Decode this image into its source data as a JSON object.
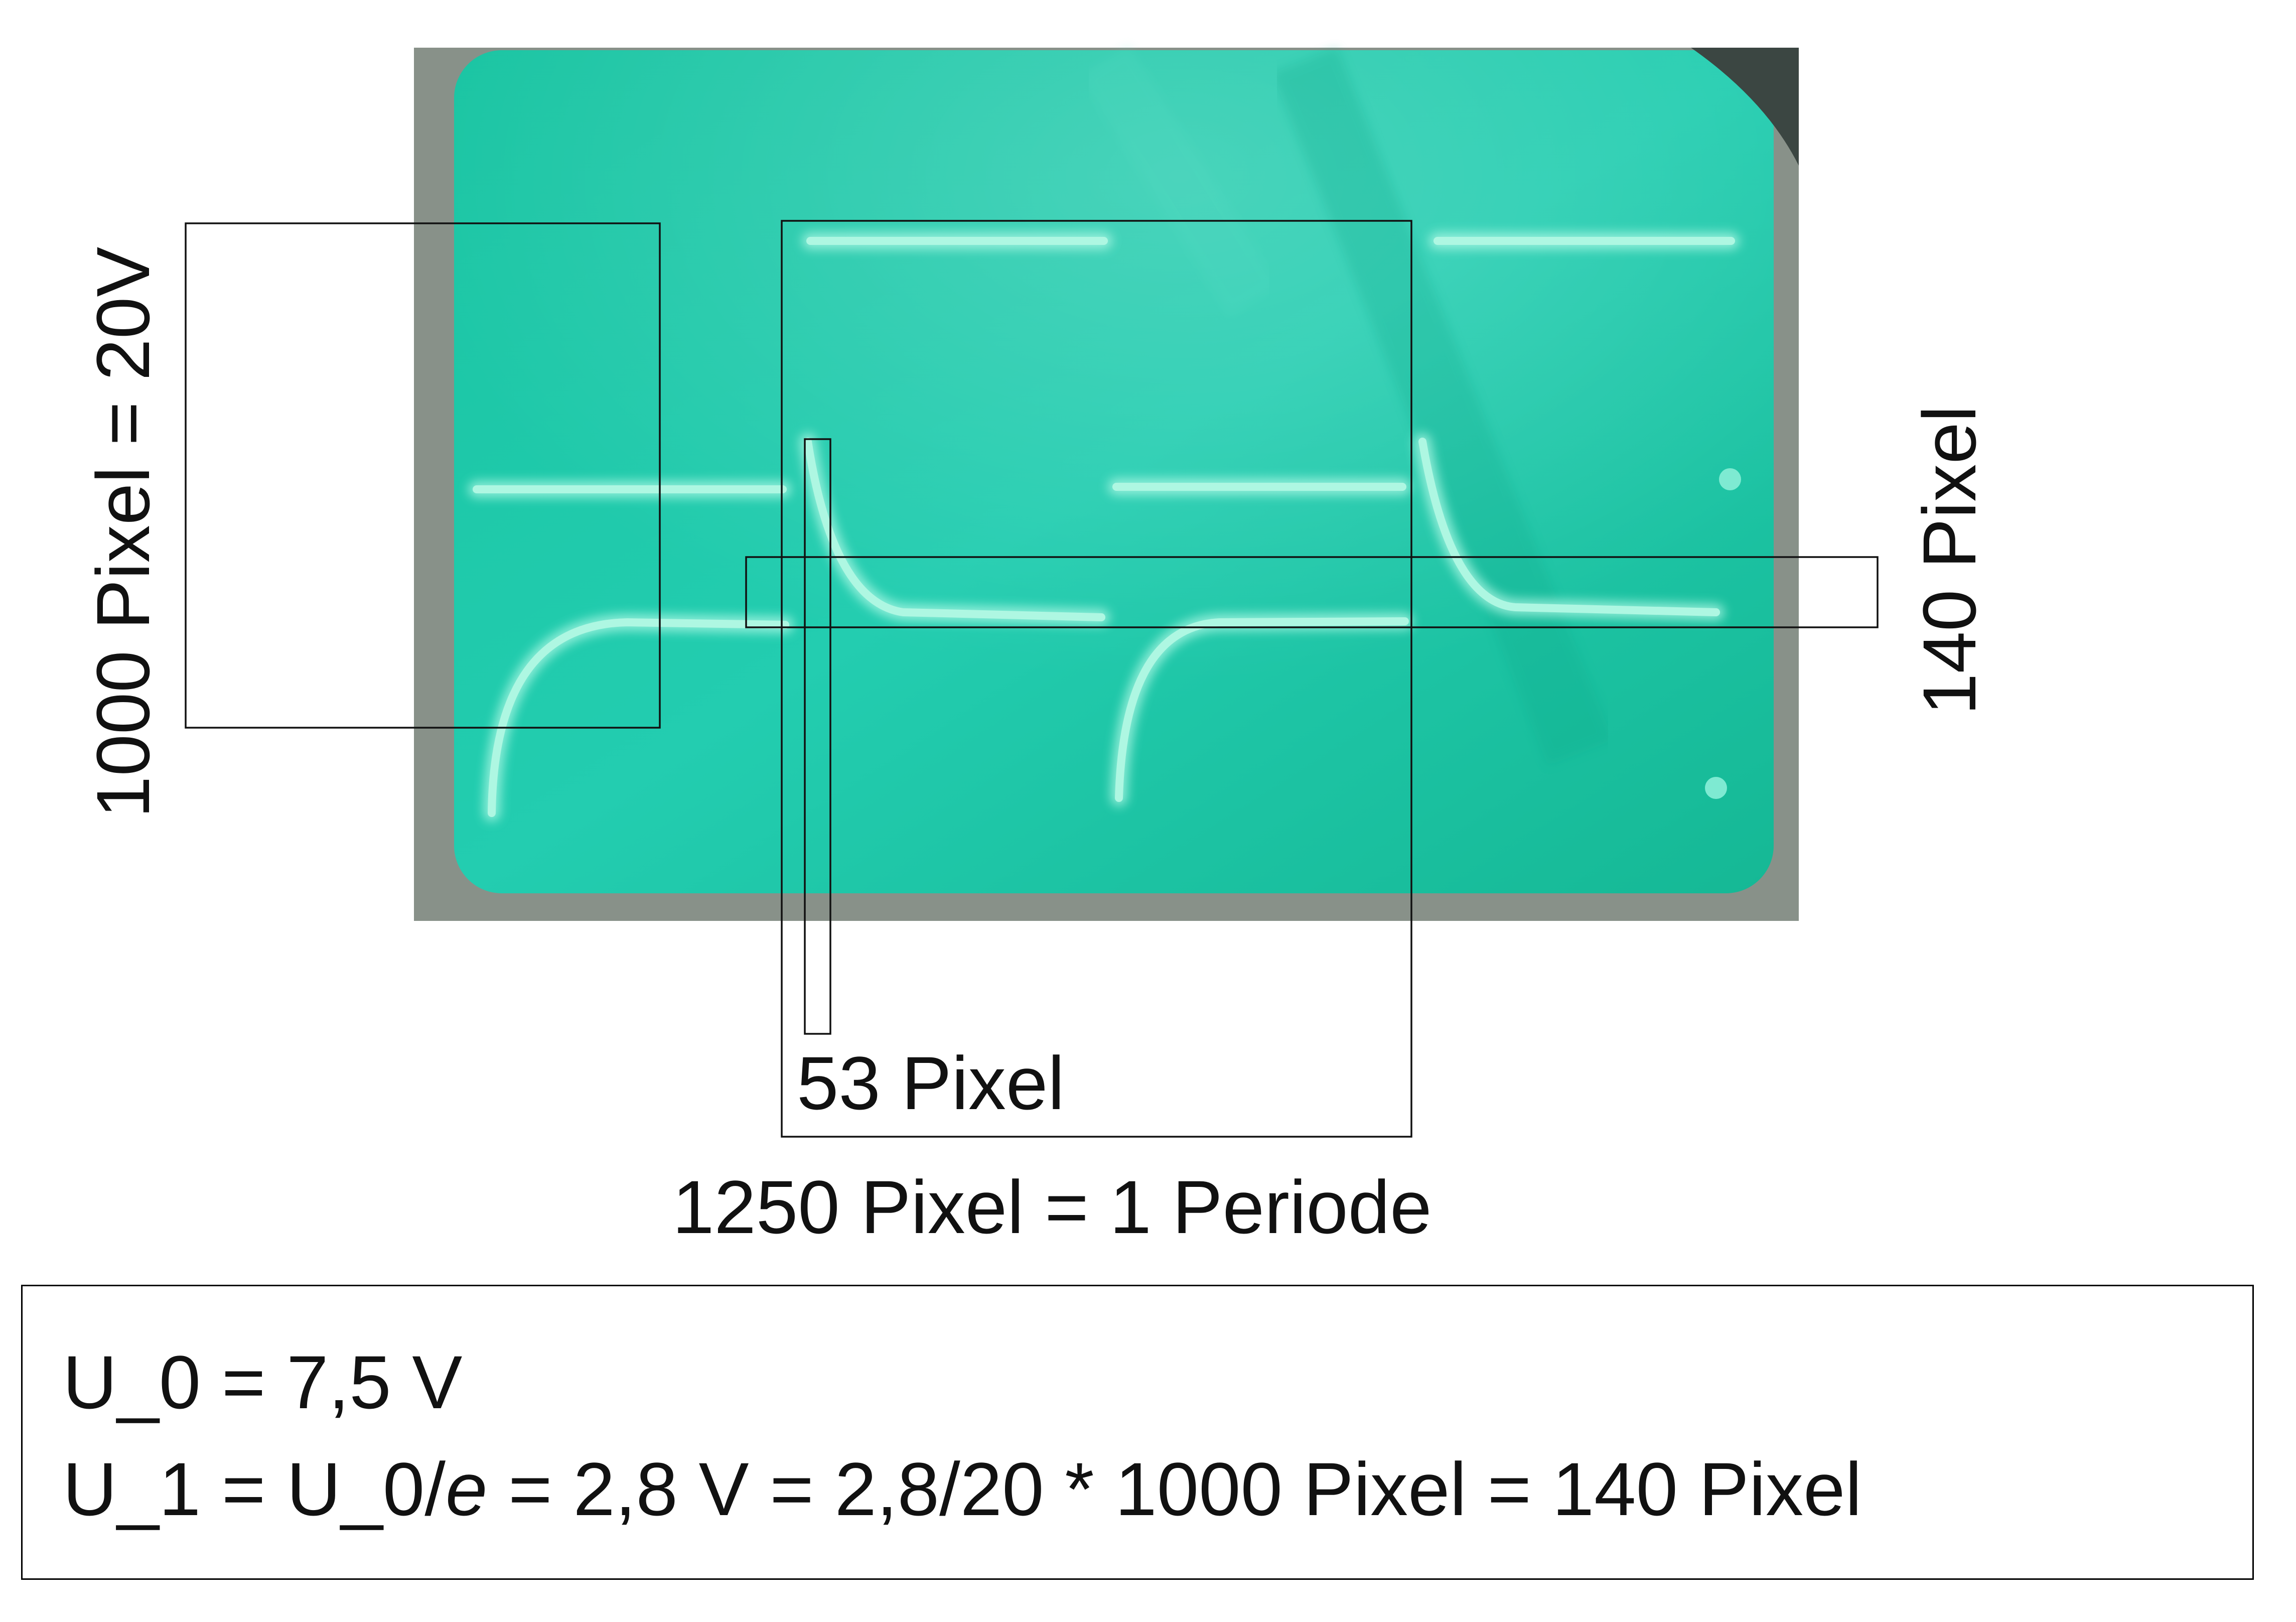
{
  "annotations": {
    "voltage_scale": "1000 Pixel = 20V",
    "threshold_height": "140 Pixel",
    "rise_width": "53 Pixel",
    "period_width": "1250 Pixel = 1 Periode"
  },
  "formulas": {
    "line1": "U_0 = 7,5 V",
    "line2_prefix": "U_1 = U_0/",
    "line2_symbol": "e",
    "line2_suffix": " = 2,8 V = 2,8/20 * 1000 Pixel = 140 Pixel"
  },
  "colors": {
    "screen": "#1fc8a6",
    "trace": "#9ff5df",
    "frame": "#8a8f88"
  }
}
